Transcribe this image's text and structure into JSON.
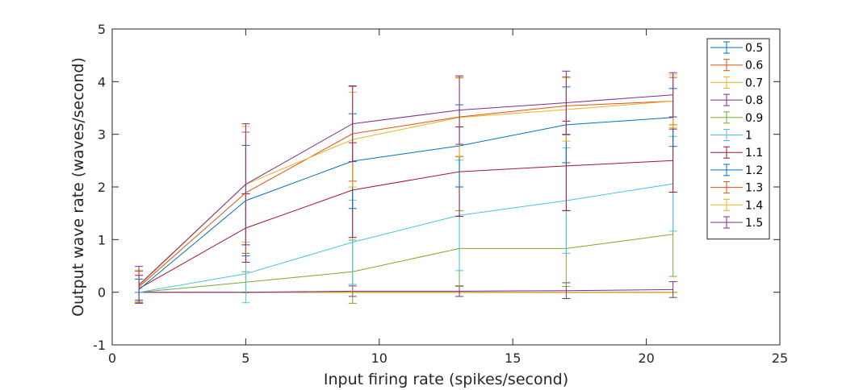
{
  "chart_data": {
    "type": "line",
    "xlabel": "Input firing rate (spikes/second)",
    "ylabel": "Output wave rate (waves/second)",
    "xlim": [
      0,
      25
    ],
    "ylim": [
      -1,
      5
    ],
    "xticks": [
      0,
      5,
      10,
      15,
      20,
      25
    ],
    "yticks": [
      -1,
      0,
      1,
      2,
      3,
      4,
      5
    ],
    "grid": false,
    "legend_position": "top-right",
    "error_bars": true,
    "x": [
      1,
      5,
      9,
      13,
      17,
      21
    ],
    "series": [
      {
        "name": "0.5",
        "color": "#0072BD",
        "values": [
          0,
          0,
          0,
          0,
          0,
          0
        ],
        "errors": [
          0,
          0,
          0,
          0,
          0,
          0
        ]
      },
      {
        "name": "0.6",
        "color": "#D95319",
        "values": [
          0,
          0,
          0,
          0,
          0,
          0
        ],
        "errors": [
          0,
          0,
          0,
          0,
          0,
          0
        ]
      },
      {
        "name": "0.7",
        "color": "#EDB120",
        "values": [
          0,
          0,
          0,
          0,
          0,
          0
        ],
        "errors": [
          0,
          0,
          0,
          0,
          0,
          0
        ]
      },
      {
        "name": "0.8",
        "color": "#7E2F8E",
        "values": [
          0,
          0,
          0.02,
          0.02,
          0.03,
          0.05
        ],
        "errors": [
          0,
          0,
          0.1,
          0.1,
          0.15,
          0.15
        ]
      },
      {
        "name": "0.9",
        "color": "#77AC30",
        "values": [
          0,
          0.19,
          0.39,
          0.83,
          0.83,
          1.1
        ],
        "errors": [
          0,
          0.2,
          0.6,
          0.72,
          0.72,
          0.8
        ]
      },
      {
        "name": "1",
        "color": "#4DBEEE",
        "values": [
          0,
          0.35,
          0.95,
          1.46,
          1.74,
          2.06
        ],
        "errors": [
          0,
          0.55,
          0.8,
          1.05,
          1.0,
          0.9
        ]
      },
      {
        "name": "1.1",
        "color": "#A2142F",
        "values": [
          0.07,
          1.22,
          1.94,
          2.29,
          2.4,
          2.5
        ],
        "errors": [
          0.25,
          0.65,
          0.9,
          0.85,
          0.85,
          0.6
        ]
      },
      {
        "name": "1.2",
        "color": "#0072BD",
        "values": [
          0.05,
          1.74,
          2.49,
          2.78,
          3.18,
          3.32
        ],
        "errors": [
          0.2,
          1.05,
          0.9,
          0.78,
          0.72,
          0.55
        ]
      },
      {
        "name": "1.3",
        "color": "#D95319",
        "values": [
          0.1,
          1.89,
          3.01,
          3.33,
          3.54,
          3.63
        ],
        "errors": [
          0.3,
          1.15,
          0.9,
          0.75,
          0.55,
          0.45
        ]
      },
      {
        "name": "1.4",
        "color": "#EDB120",
        "values": [
          0.12,
          2.05,
          2.9,
          3.32,
          3.47,
          3.63
        ],
        "errors": [
          0.3,
          1.1,
          0.9,
          0.75,
          0.6,
          0.5
        ]
      },
      {
        "name": "1.5",
        "color": "#7E2F8E",
        "values": [
          0.14,
          2.05,
          3.2,
          3.46,
          3.6,
          3.75
        ],
        "errors": [
          0.35,
          1.15,
          0.72,
          0.65,
          0.6,
          0.42
        ]
      }
    ]
  }
}
